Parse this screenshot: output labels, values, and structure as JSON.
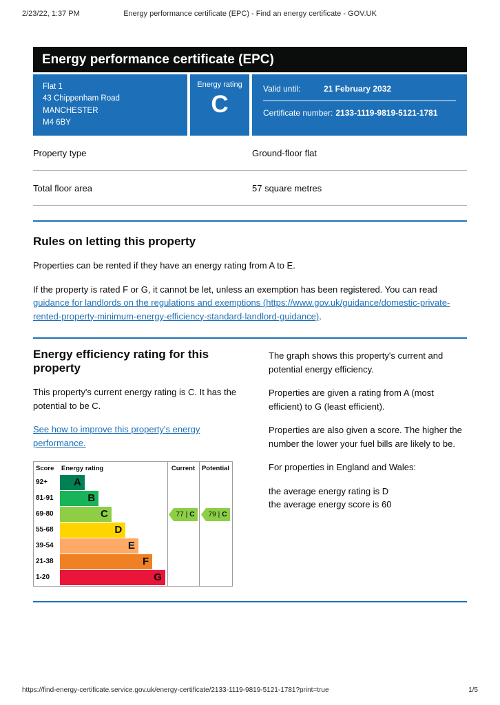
{
  "colors": {
    "govuk_blue": "#1d70b8",
    "banner_black": "#0b0c0c",
    "link_blue": "#1d70b8"
  },
  "print_header": {
    "datetime": "2/23/22, 1:37 PM",
    "page_title": "Energy performance certificate (EPC) - Find an energy certificate - GOV.UK"
  },
  "banner": {
    "title": "Energy performance certificate (EPC)"
  },
  "summary_panel": {
    "address_lines": [
      "Flat 1",
      "43 Chippenham Road",
      "MANCHESTER",
      "M4 6BY"
    ],
    "energy_rating_label": "Energy rating",
    "energy_rating_value": "C",
    "valid_until_label": "Valid until:",
    "valid_until_value": "21 February 2032",
    "certificate_number_label": "Certificate number:",
    "certificate_number_value": "2133-1119-9819-5121-1781"
  },
  "property_details": [
    {
      "label": "Property type",
      "value": "Ground-floor flat"
    },
    {
      "label": "Total floor area",
      "value": "57 square metres"
    }
  ],
  "rules_section": {
    "heading": "Rules on letting this property",
    "paragraph1": "Properties can be rented if they have an energy rating from A to E.",
    "paragraph2_before_link": "If the property is rated F or G, it cannot be let, unless an exemption has been registered. You can read ",
    "paragraph2_link": "guidance for landlords on the regulations and exemptions (https://www.gov.uk/guidance/domestic-private-rented-property-minimum-energy-efficiency-standard-landlord-guidance)",
    "paragraph2_after_link": "."
  },
  "efficiency_section": {
    "heading": "Energy efficiency rating for this property",
    "paragraph1": "This property's current energy rating is C. It has the potential to be C.",
    "improve_link": "See how to improve this property's energy performance.",
    "right_paragraphs": [
      [
        "The graph shows this property's current and potential energy efficiency."
      ],
      [
        "Properties are given a rating from A (most efficient) to G (least efficient)."
      ],
      [
        "Properties are also given a score. The higher the number the lower your fuel bills are likely to be."
      ],
      [
        "For properties in England and Wales:"
      ],
      [
        "the average energy rating is D",
        "the average energy score is 60"
      ]
    ]
  },
  "chart_data": {
    "type": "bar",
    "title": "Energy efficiency rating chart",
    "headers": {
      "score": "Score",
      "rating": "Energy rating",
      "current": "Current",
      "potential": "Potential"
    },
    "separator": "|",
    "bands": [
      {
        "score_range": "92+",
        "letter": "A",
        "color": "#008054",
        "width_pct": 23
      },
      {
        "score_range": "81-91",
        "letter": "B",
        "color": "#19b459",
        "width_pct": 36
      },
      {
        "score_range": "69-80",
        "letter": "C",
        "color": "#8dce46",
        "width_pct": 48
      },
      {
        "score_range": "55-68",
        "letter": "D",
        "color": "#ffd500",
        "width_pct": 61
      },
      {
        "score_range": "39-54",
        "letter": "E",
        "color": "#fcaa65",
        "width_pct": 73
      },
      {
        "score_range": "21-38",
        "letter": "F",
        "color": "#ef8023",
        "width_pct": 86
      },
      {
        "score_range": "1-20",
        "letter": "G",
        "color": "#e9153b",
        "width_pct": 98
      }
    ],
    "current": {
      "score": 77,
      "letter": "C",
      "band_index": 2,
      "color": "#8dce46"
    },
    "potential": {
      "score": 79,
      "letter": "C",
      "band_index": 2,
      "color": "#8dce46"
    }
  },
  "footer": {
    "url": "https://find-energy-certificate.service.gov.uk/energy-certificate/2133-1119-9819-5121-1781?print=true",
    "page_number": "1/5"
  }
}
